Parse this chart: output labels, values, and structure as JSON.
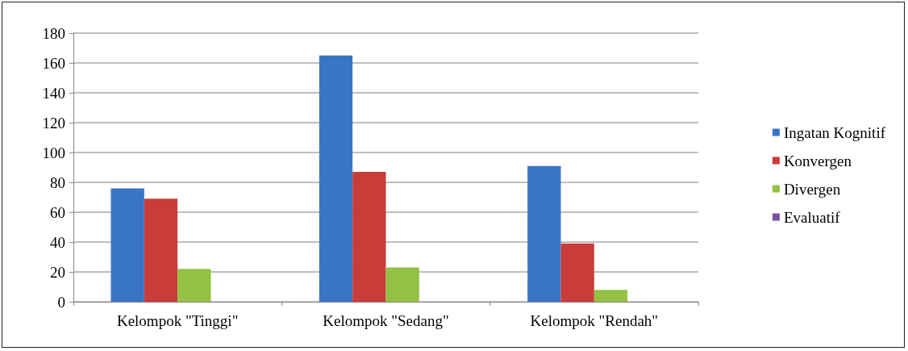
{
  "chart_data": {
    "type": "bar",
    "categories": [
      "Kelompok \"Tinggi\"",
      "Kelompok \"Sedang\"",
      "Kelompok \"Rendah\""
    ],
    "series": [
      {
        "name": "Ingatan Kognitif",
        "color": "#3a75c4",
        "values": [
          76,
          165,
          91
        ]
      },
      {
        "name": "Konvergen",
        "color": "#c83c3a",
        "values": [
          69,
          87,
          39
        ]
      },
      {
        "name": "Divergen",
        "color": "#94c043",
        "values": [
          22,
          23,
          8
        ]
      },
      {
        "name": "Evaluatif",
        "color": "#7a52a0",
        "values": [
          0,
          0,
          0
        ]
      }
    ],
    "ylim": [
      0,
      180
    ],
    "yticks": [
      0,
      20,
      40,
      60,
      80,
      100,
      120,
      140,
      160,
      180
    ],
    "grid": "y",
    "legend": "right"
  }
}
